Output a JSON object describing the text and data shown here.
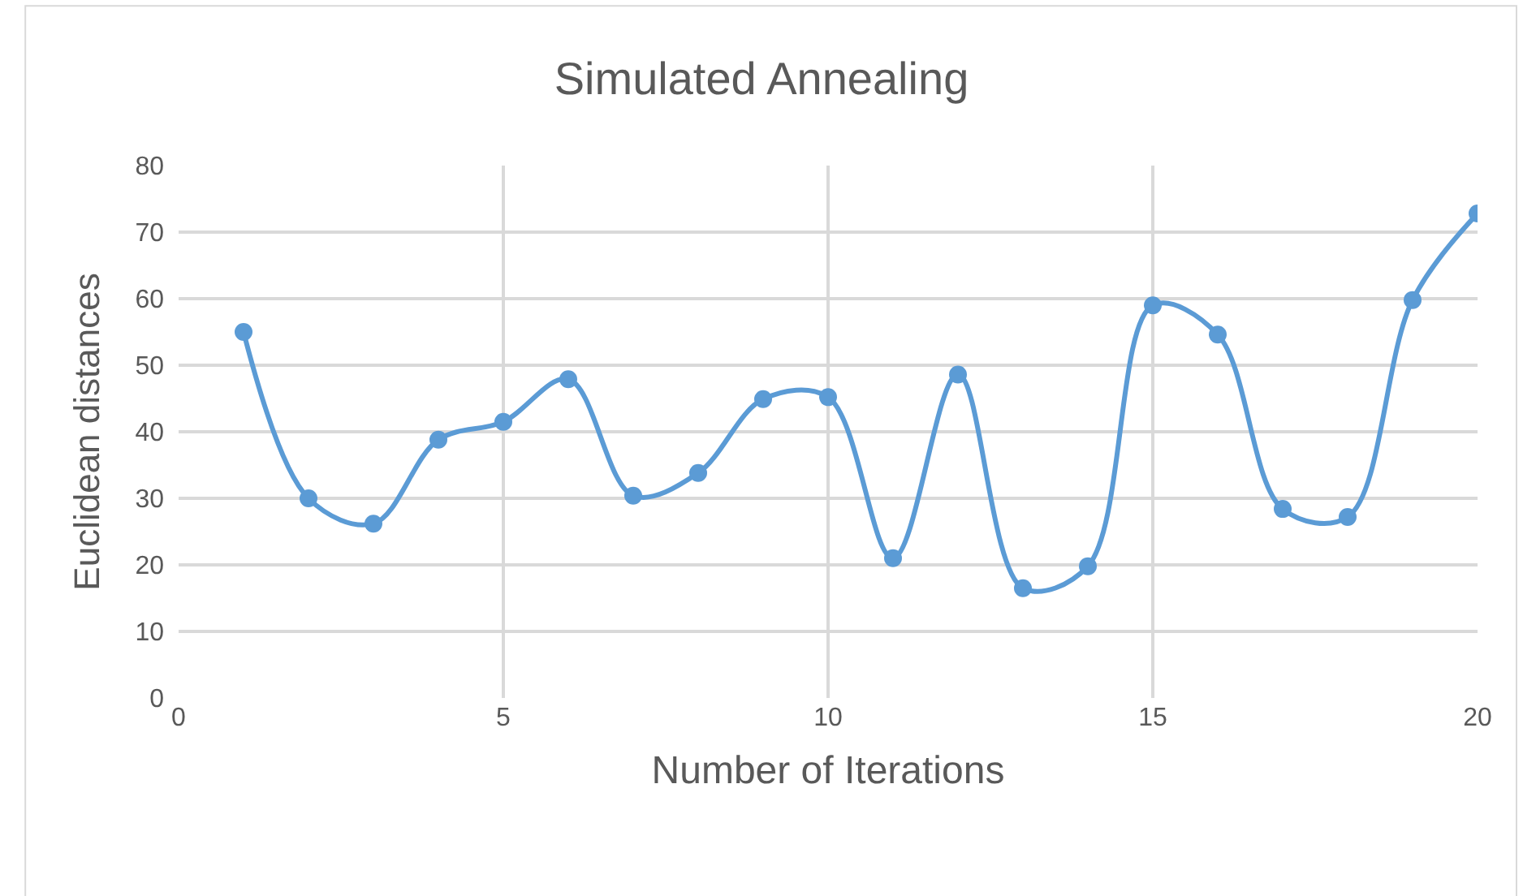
{
  "chart_data": {
    "type": "line",
    "title": "Simulated Annealing",
    "xlabel": "Number of Iterations",
    "ylabel": "Euclidean distances",
    "x": [
      1,
      2,
      3,
      4,
      5,
      6,
      7,
      8,
      9,
      10,
      11,
      12,
      13,
      14,
      15,
      16,
      17,
      18,
      19,
      20
    ],
    "series": [
      {
        "color": "#5b9bd5",
        "values": [
          55,
          30,
          26.2,
          38.8,
          41.5,
          47.9,
          30.4,
          33.8,
          44.9,
          45.2,
          21,
          48.6,
          16.5,
          19.8,
          59,
          54.6,
          28.4,
          27.2,
          59.8,
          72.8
        ]
      }
    ],
    "xlim": [
      0,
      20
    ],
    "xticks": [
      0,
      5,
      10,
      15,
      20
    ],
    "ylim": [
      0,
      80
    ],
    "yticks": [
      0,
      10,
      20,
      30,
      40,
      50,
      60,
      70,
      80
    ],
    "grid": true,
    "marker": "circle",
    "line_style": "solid"
  }
}
